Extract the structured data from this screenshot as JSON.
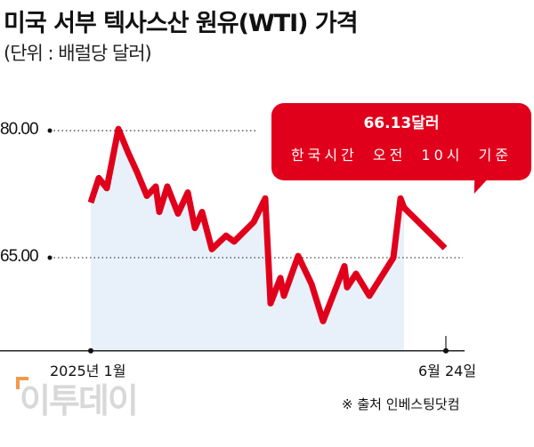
{
  "chart_data": {
    "type": "area",
    "title": "미국 서부 텍사스산 원유(WTI) 가격",
    "subtitle": "(단위 : 배럴당 달러)",
    "yticks": [
      "80.00",
      "65.00"
    ],
    "ytick_values": [
      80,
      65
    ],
    "ylim": [
      54,
      81
    ],
    "xticks": [
      "2025년 1월",
      "6월 24일"
    ],
    "grid": "dotted lines at y ticks",
    "values": [
      71.5,
      74.4,
      73.2,
      80.2,
      77.4,
      75.1,
      72.3,
      73.4,
      70.4,
      73.4,
      70.2,
      72.7,
      68.5,
      70.4,
      66.0,
      67.6,
      66.9,
      69.2,
      72.0,
      59.6,
      62.6,
      60.5,
      65.2,
      61.9,
      57.5,
      64.0,
      61.5,
      63.1,
      60.5,
      65.0,
      72.0,
      70.9,
      66.13
    ],
    "line_color": "#e1001b",
    "fill_color": "#e8f1fa",
    "annotation": {
      "value": "66.13달러",
      "note": "한국시간 오전 10시 기준"
    }
  },
  "logo": "이투데이",
  "source": "※ 출처 인베스팅닷컴"
}
